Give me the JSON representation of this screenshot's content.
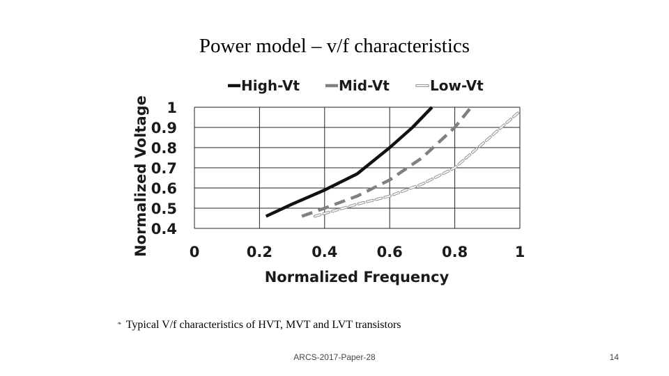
{
  "slide": {
    "title": "Power model – v/f characteristics",
    "caption_bullet": "❧",
    "caption": "Typical V/f characteristics of HVT, MVT and LVT transistors",
    "footer_center": "ARCS-2017-Paper-28",
    "page_number": "14"
  },
  "chart_data": {
    "type": "line",
    "xlabel": "Normalized Frequency",
    "ylabel": "Normalized Voltage",
    "xlim": [
      0,
      1
    ],
    "ylim": [
      0.4,
      1
    ],
    "x_ticks": [
      "0",
      "0.2",
      "0.4",
      "0.6",
      "0.8",
      "1"
    ],
    "y_ticks": [
      "0.4",
      "0.5",
      "0.6",
      "0.7",
      "0.8",
      "0.9",
      "1"
    ],
    "grid": true,
    "legend_position": "top",
    "series": [
      {
        "name": "High-Vt",
        "color": "#111111",
        "style": "solid",
        "points": [
          [
            0.22,
            0.46
          ],
          [
            0.3,
            0.52
          ],
          [
            0.4,
            0.59
          ],
          [
            0.5,
            0.67
          ],
          [
            0.6,
            0.8
          ],
          [
            0.67,
            0.9
          ],
          [
            0.73,
            1.0
          ]
        ]
      },
      {
        "name": "Mid-Vt",
        "color": "#808080",
        "style": "dashed",
        "points": [
          [
            0.33,
            0.46
          ],
          [
            0.4,
            0.5
          ],
          [
            0.5,
            0.56
          ],
          [
            0.6,
            0.64
          ],
          [
            0.7,
            0.75
          ],
          [
            0.8,
            0.9
          ],
          [
            0.85,
            1.0
          ]
        ]
      },
      {
        "name": "Low-Vt",
        "color": "#9a9a9a",
        "style": "hollow-dashed",
        "points": [
          [
            0.37,
            0.46
          ],
          [
            0.5,
            0.52
          ],
          [
            0.6,
            0.56
          ],
          [
            0.7,
            0.62
          ],
          [
            0.8,
            0.7
          ],
          [
            0.9,
            0.84
          ],
          [
            1.0,
            0.98
          ]
        ]
      }
    ]
  }
}
